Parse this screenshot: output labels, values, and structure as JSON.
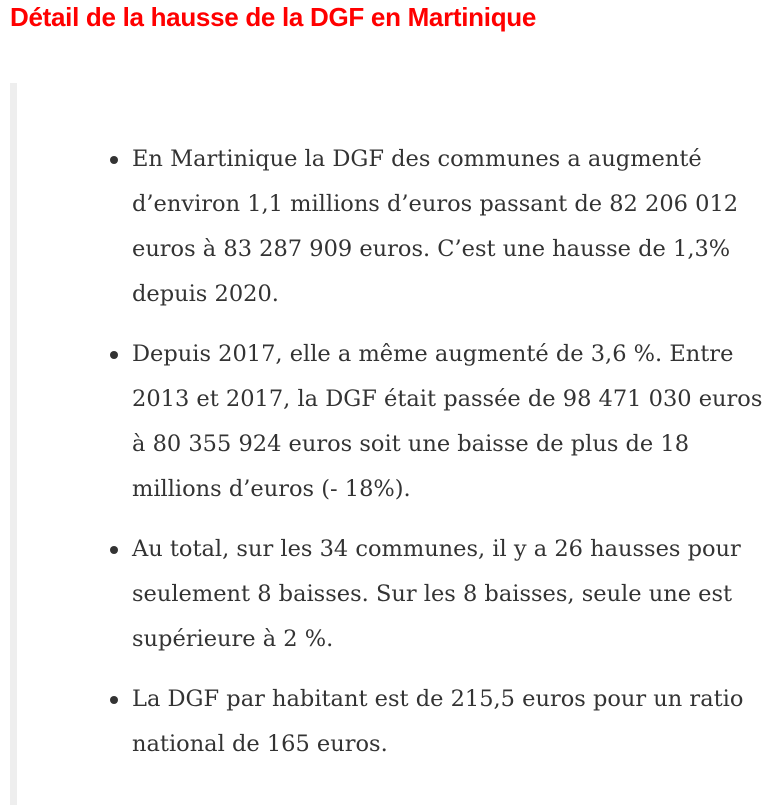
{
  "title": "Détail de la hausse de la DGF en Martinique",
  "items": [
    "En Martinique la DGF des communes a augmenté d’environ 1,1 millions d’euros passant de 82 206 012 euros à 83 287 909 euros. C’est une hausse de 1,3% depuis 2020.",
    "Depuis 2017, elle a même augmenté de 3,6 %. Entre 2013 et 2017, la DGF était passée de 98 471 030 euros à 80 355 924 euros soit une baisse de plus de 18 millions d’euros (- 18%).",
    "Au total, sur les 34 communes, il y a 26 hausses pour seulement 8 baisses. Sur les 8 baisses, seule une est supérieure à 2 %.",
    "La DGF par habitant est de 215,5 euros pour un ratio national de 165 euros."
  ],
  "colors": {
    "title": "#ff0000",
    "text": "#333333",
    "quote_border": "#eeeeee"
  }
}
